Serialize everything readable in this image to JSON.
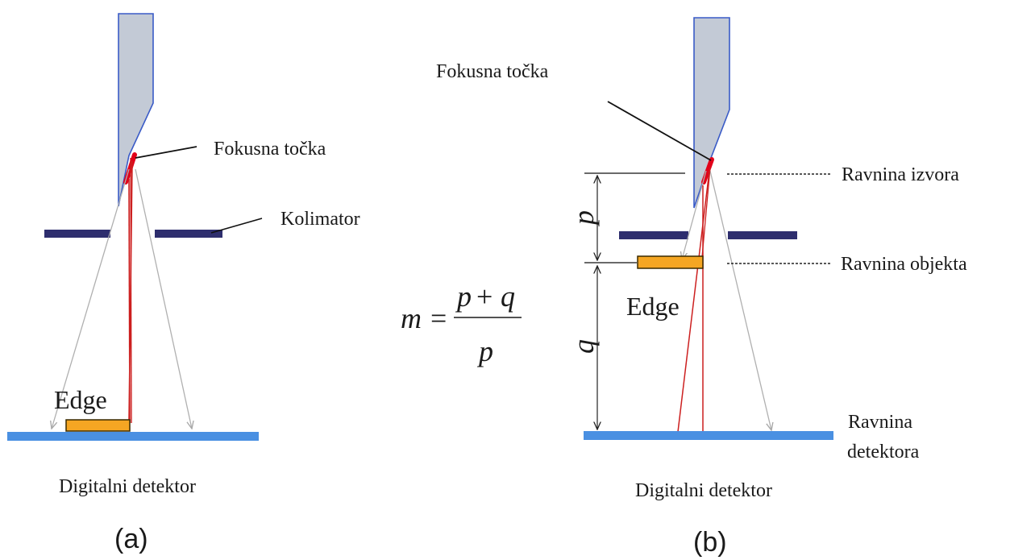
{
  "panel_a": {
    "focal_spot_label": "Fokusna točka",
    "collimator_label": "Kolimator",
    "edge_label": "Edge",
    "detector_label": "Digitalni detektor",
    "caption": "(a)"
  },
  "panel_b": {
    "focal_spot_label": "Fokusna točka",
    "source_plane_label": "Ravnina izvora",
    "object_plane_label": "Ravnina objekta",
    "detector_plane_label_line1": "Ravnina",
    "detector_plane_label_line2": "detektora",
    "edge_label": "Edge",
    "p_label": "p",
    "q_label": "q",
    "detector_label": "Digitalni detektor",
    "caption": "(b)"
  },
  "formula": {
    "lhs": "m",
    "equals": "=",
    "numerator_p": "p",
    "plus": "+",
    "numerator_q": "q",
    "denominator": "p"
  },
  "colors": {
    "tube": "#c3cad6",
    "tube_outline": "#3a5bc7",
    "focal_spot": "#e2001a",
    "collimator": "#2e2e6e",
    "edge_fill": "#f5a623",
    "edge_outline": "#3a2a00",
    "detector": "#4a90e2",
    "red_ray": "#cc1f1f",
    "grey_ray": "#b0b0b0"
  }
}
